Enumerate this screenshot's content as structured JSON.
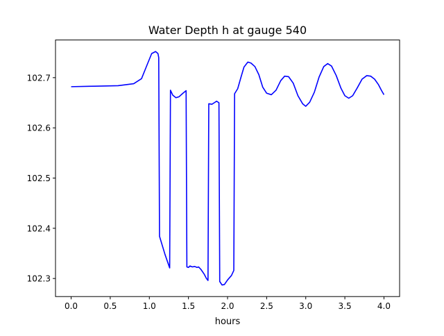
{
  "chart_data": {
    "type": "line",
    "title": "Water Depth h at gauge 540",
    "xlabel": "hours",
    "ylabel": "",
    "xlim": [
      -0.2,
      4.2
    ],
    "ylim": [
      102.264,
      102.775
    ],
    "x_ticks": [
      0.0,
      0.5,
      1.0,
      1.5,
      2.0,
      2.5,
      3.0,
      3.5,
      4.0
    ],
    "x_tick_labels": [
      "0.0",
      "0.5",
      "1.0",
      "1.5",
      "2.0",
      "2.5",
      "3.0",
      "3.5",
      "4.0"
    ],
    "y_ticks": [
      102.3,
      102.4,
      102.5,
      102.6,
      102.7
    ],
    "y_tick_labels": [
      "102.3",
      "102.4",
      "102.5",
      "102.6",
      "102.7"
    ],
    "grid": false,
    "legend": false,
    "series": [
      {
        "color": "#0000ff",
        "points": [
          [
            0.0,
            102.682
          ],
          [
            0.3,
            102.683
          ],
          [
            0.6,
            102.684
          ],
          [
            0.8,
            102.688
          ],
          [
            0.9,
            102.698
          ],
          [
            0.97,
            102.725
          ],
          [
            1.03,
            102.748
          ],
          [
            1.08,
            102.752
          ],
          [
            1.11,
            102.748
          ],
          [
            1.12,
            102.74
          ],
          [
            1.13,
            102.384
          ],
          [
            1.2,
            102.348
          ],
          [
            1.26,
            102.321
          ],
          [
            1.27,
            102.675
          ],
          [
            1.3,
            102.665
          ],
          [
            1.34,
            102.66
          ],
          [
            1.38,
            102.662
          ],
          [
            1.43,
            102.669
          ],
          [
            1.47,
            102.674
          ],
          [
            1.48,
            102.323
          ],
          [
            1.5,
            102.322
          ],
          [
            1.52,
            102.325
          ],
          [
            1.55,
            102.323
          ],
          [
            1.58,
            102.324
          ],
          [
            1.61,
            102.322
          ],
          [
            1.63,
            102.323
          ],
          [
            1.66,
            102.318
          ],
          [
            1.7,
            102.309
          ],
          [
            1.73,
            102.3
          ],
          [
            1.75,
            102.296
          ],
          [
            1.76,
            102.648
          ],
          [
            1.8,
            102.647
          ],
          [
            1.83,
            102.65
          ],
          [
            1.86,
            102.653
          ],
          [
            1.89,
            102.65
          ],
          [
            1.9,
            102.294
          ],
          [
            1.93,
            102.287
          ],
          [
            1.96,
            102.288
          ],
          [
            2.0,
            102.297
          ],
          [
            2.05,
            102.306
          ],
          [
            2.08,
            102.316
          ],
          [
            2.09,
            102.668
          ],
          [
            2.13,
            102.678
          ],
          [
            2.17,
            102.7
          ],
          [
            2.21,
            102.721
          ],
          [
            2.26,
            102.731
          ],
          [
            2.3,
            102.729
          ],
          [
            2.35,
            102.722
          ],
          [
            2.4,
            102.706
          ],
          [
            2.45,
            102.681
          ],
          [
            2.5,
            102.669
          ],
          [
            2.56,
            102.666
          ],
          [
            2.62,
            102.675
          ],
          [
            2.68,
            102.694
          ],
          [
            2.73,
            102.703
          ],
          [
            2.78,
            102.702
          ],
          [
            2.84,
            102.689
          ],
          [
            2.9,
            102.664
          ],
          [
            2.96,
            102.648
          ],
          [
            3.0,
            102.643
          ],
          [
            3.05,
            102.651
          ],
          [
            3.11,
            102.671
          ],
          [
            3.17,
            102.701
          ],
          [
            3.23,
            102.722
          ],
          [
            3.28,
            102.728
          ],
          [
            3.33,
            102.723
          ],
          [
            3.39,
            102.704
          ],
          [
            3.45,
            102.679
          ],
          [
            3.5,
            102.664
          ],
          [
            3.55,
            102.659
          ],
          [
            3.6,
            102.664
          ],
          [
            3.66,
            102.68
          ],
          [
            3.72,
            102.697
          ],
          [
            3.78,
            102.704
          ],
          [
            3.83,
            102.703
          ],
          [
            3.88,
            102.697
          ],
          [
            3.93,
            102.686
          ],
          [
            3.97,
            102.674
          ],
          [
            4.0,
            102.666
          ]
        ]
      }
    ]
  }
}
